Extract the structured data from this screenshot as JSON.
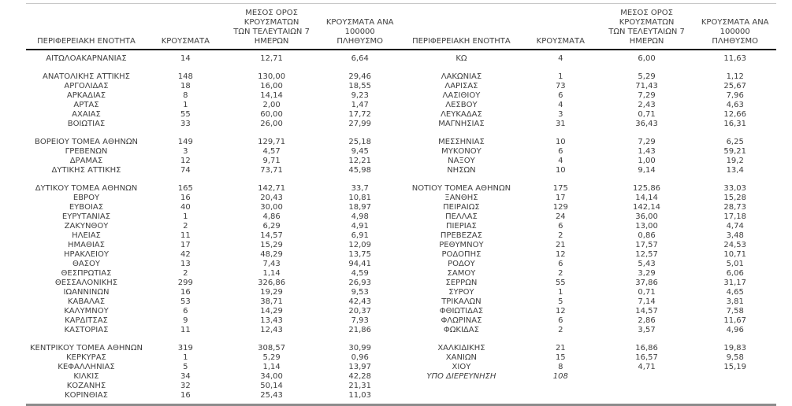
{
  "colors": {
    "text": "#3f3f3f",
    "header_rule": "#111111",
    "top_rule": "#c8c8c8",
    "bottom_rule": "#8c8c8c",
    "background": "#ffffff"
  },
  "table": {
    "headers": {
      "region": "ΠΕΡΙΦΕΡΕΙΑΚΗ ΕΝΟΤΗΤΑ",
      "cases": "ΚΡΟΥΣΜΑΤΑ",
      "avg7": "ΜΕΣΟΣ ΟΡΟΣ ΚΡΟΥΣΜΑΤΩΝ\nΤΩΝ ΤΕΛΕΥΤΑΙΩΝ 7\nΗΜΕΡΩΝ",
      "per100k": "ΚΡΟΥΣΜΑΤΑ ΑΝΑ 100000\nΠΛΗΘΥΣΜΟ"
    },
    "groups": [
      {
        "left": [
          [
            "ΑΙΤΩΛΟΑΚΑΡΝΑΝΙΑΣ",
            "14",
            "12,71",
            "6,64"
          ]
        ],
        "right": [
          [
            "ΚΩ",
            "4",
            "6,00",
            "11,63"
          ]
        ]
      },
      {
        "left": [
          [
            "ΑΝΑΤΟΛΙΚΗΣ ΑΤΤΙΚΗΣ",
            "148",
            "130,00",
            "29,46"
          ],
          [
            "ΑΡΓΟΛΙΔΑΣ",
            "18",
            "16,00",
            "18,55"
          ],
          [
            "ΑΡΚΑΔΙΑΣ",
            "8",
            "14,14",
            "9,23"
          ],
          [
            "ΑΡΤΑΣ",
            "1",
            "2,00",
            "1,47"
          ],
          [
            "ΑΧΑΪΑΣ",
            "55",
            "60,00",
            "17,72"
          ],
          [
            "ΒΟΙΩΤΙΑΣ",
            "33",
            "26,00",
            "27,99"
          ]
        ],
        "right": [
          [
            "ΛΑΚΩΝΙΑΣ",
            "1",
            "5,29",
            "1,12"
          ],
          [
            "ΛΑΡΙΣΑΣ",
            "73",
            "71,43",
            "25,67"
          ],
          [
            "ΛΑΣΙΘΙΟΥ",
            "6",
            "7,29",
            "7,96"
          ],
          [
            "ΛΕΣΒΟΥ",
            "4",
            "2,43",
            "4,63"
          ],
          [
            "ΛΕΥΚΑΔΑΣ",
            "3",
            "0,71",
            "12,66"
          ],
          [
            "ΜΑΓΝΗΣΙΑΣ",
            "31",
            "36,43",
            "16,31"
          ]
        ]
      },
      {
        "left": [
          [
            "ΒΟΡΕΙΟΥ ΤΟΜΕΑ ΑΘΗΝΩΝ",
            "149",
            "129,71",
            "25,18"
          ],
          [
            "ΓΡΕΒΕΝΩΝ",
            "3",
            "4,57",
            "9,45"
          ],
          [
            "ΔΡΑΜΑΣ",
            "12",
            "9,71",
            "12,21"
          ],
          [
            "ΔΥΤΙΚΗΣ ΑΤΤΙΚΗΣ",
            "74",
            "73,71",
            "45,98"
          ]
        ],
        "right": [
          [
            "ΜΕΣΣΗΝΙΑΣ",
            "10",
            "7,29",
            "6,25"
          ],
          [
            "ΜΥΚΟΝΟΥ",
            "6",
            "1,43",
            "59,21"
          ],
          [
            "ΝΑΞΟΥ",
            "4",
            "1,00",
            "19,2"
          ],
          [
            "ΝΗΣΩΝ",
            "10",
            "9,14",
            "13,4"
          ]
        ]
      },
      {
        "left": [
          [
            "ΔΥΤΙΚΟΥ ΤΟΜΕΑ ΑΘΗΝΩΝ",
            "165",
            "142,71",
            "33,7"
          ],
          [
            "ΕΒΡΟΥ",
            "16",
            "20,43",
            "10,81"
          ],
          [
            "ΕΥΒΟΙΑΣ",
            "40",
            "30,00",
            "18,97"
          ],
          [
            "ΕΥΡΥΤΑΝΙΑΣ",
            "1",
            "4,86",
            "4,98"
          ],
          [
            "ΖΑΚΥΝΘΟΥ",
            "2",
            "6,29",
            "4,91"
          ],
          [
            "ΗΛΕΙΑΣ",
            "11",
            "14,57",
            "6,91"
          ],
          [
            "ΗΜΑΘΙΑΣ",
            "17",
            "15,29",
            "12,09"
          ],
          [
            "ΗΡΑΚΛΕΙΟΥ",
            "42",
            "48,29",
            "13,75"
          ],
          [
            "ΘΑΣΟΥ",
            "13",
            "7,43",
            "94,41"
          ],
          [
            "ΘΕΣΠΡΩΤΙΑΣ",
            "2",
            "1,14",
            "4,59"
          ],
          [
            "ΘΕΣΣΑΛΟΝΙΚΗΣ",
            "299",
            "326,86",
            "26,93"
          ],
          [
            "ΙΩΑΝΝΙΝΩΝ",
            "16",
            "19,29",
            "9,53"
          ],
          [
            "ΚΑΒΑΛΑΣ",
            "53",
            "38,71",
            "42,43"
          ],
          [
            "ΚΑΛΥΜΝΟΥ",
            "6",
            "14,29",
            "20,37"
          ],
          [
            "ΚΑΡΔΙΤΣΑΣ",
            "9",
            "13,43",
            "7,93"
          ],
          [
            "ΚΑΣΤΟΡΙΑΣ",
            "11",
            "12,43",
            "21,86"
          ]
        ],
        "right": [
          [
            "ΝΟΤΙΟΥ ΤΟΜΕΑ ΑΘΗΝΩΝ",
            "175",
            "125,86",
            "33,03"
          ],
          [
            "ΞΑΝΘΗΣ",
            "17",
            "14,14",
            "15,28"
          ],
          [
            "ΠΕΙΡΑΙΩΣ",
            "129",
            "142,14",
            "28,73"
          ],
          [
            "ΠΕΛΛΑΣ",
            "24",
            "36,00",
            "17,18"
          ],
          [
            "ΠΙΕΡΙΑΣ",
            "6",
            "13,00",
            "4,74"
          ],
          [
            "ΠΡΕΒΕΖΑΣ",
            "2",
            "0,86",
            "3,48"
          ],
          [
            "ΡΕΘΥΜΝΟΥ",
            "21",
            "17,57",
            "24,53"
          ],
          [
            "ΡΟΔΟΠΗΣ",
            "12",
            "12,57",
            "10,71"
          ],
          [
            "ΡΟΔΟΥ",
            "6",
            "5,43",
            "5,01"
          ],
          [
            "ΣΑΜΟΥ",
            "2",
            "3,29",
            "6,06"
          ],
          [
            "ΣΕΡΡΩΝ",
            "55",
            "37,86",
            "31,17"
          ],
          [
            "ΣΥΡΟΥ",
            "1",
            "0,71",
            "4,65"
          ],
          [
            "ΤΡΙΚΑΛΩΝ",
            "5",
            "7,14",
            "3,81"
          ],
          [
            "ΦΘΙΩΤΙΔΑΣ",
            "12",
            "14,57",
            "7,58"
          ],
          [
            "ΦΛΩΡΙΝΑΣ",
            "6",
            "2,86",
            "11,67"
          ],
          [
            "ΦΩΚΙΔΑΣ",
            "2",
            "3,57",
            "4,96"
          ]
        ]
      },
      {
        "left": [
          [
            "ΚΕΝΤΡΙΚΟΥ ΤΟΜΕΑ ΑΘΗΝΩΝ",
            "319",
            "308,57",
            "30,99"
          ],
          [
            "ΚΕΡΚΥΡΑΣ",
            "1",
            "5,29",
            "0,96"
          ],
          [
            "ΚΕΦΑΛΛΗΝΙΑΣ",
            "5",
            "1,14",
            "13,97"
          ],
          [
            "ΚΙΛΚΙΣ",
            "34",
            "34,00",
            "42,28"
          ],
          [
            "ΚΟΖΑΝΗΣ",
            "32",
            "50,14",
            "21,31"
          ],
          [
            "ΚΟΡΙΝΘΙΑΣ",
            "16",
            "25,43",
            "11,03"
          ]
        ],
        "right": [
          [
            "ΧΑΛΚΙΔΙΚΗΣ",
            "21",
            "16,86",
            "19,83"
          ],
          [
            "ΧΑΝΙΩΝ",
            "15",
            "16,57",
            "9,58"
          ],
          [
            "ΧΙΟΥ",
            "8",
            "4,71",
            "15,19"
          ],
          [
            "ΥΠΟ ΔΙΕΡΕΥΝΗΣΗ",
            "108",
            "",
            "",
            true
          ]
        ]
      }
    ]
  }
}
